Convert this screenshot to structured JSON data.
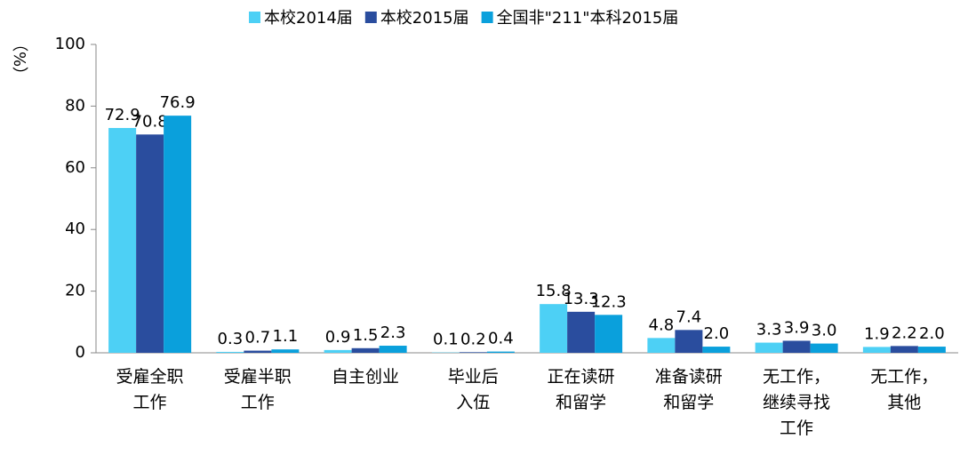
{
  "chart_data": {
    "type": "bar",
    "y_label": "（%）",
    "categories": [
      "受雇全职\n工作",
      "受雇半职\n工作",
      "自主创业",
      "毕业后\n入伍",
      "正在读研\n和留学",
      "准备读研\n和留学",
      "无工作，\n继续寻找\n工作",
      "无工作，\n其他"
    ],
    "series": [
      {
        "name": "本校2014届",
        "color": "#4dd0f5",
        "values": [
          72.9,
          0.3,
          0.9,
          0.1,
          15.8,
          4.8,
          3.3,
          1.9
        ],
        "value_labels": [
          "72.9",
          "0.3",
          "0.9",
          "0.1",
          "15.8",
          "4.8",
          "3.3",
          "1.9"
        ]
      },
      {
        "name": "本校2015届",
        "color": "#2a4d9e",
        "values": [
          70.8,
          0.7,
          1.5,
          0.2,
          13.3,
          7.4,
          3.9,
          2.2
        ],
        "value_labels": [
          "70.8",
          "0.7",
          "1.5",
          "0.2",
          "13.3",
          "7.4",
          "3.9",
          "2.2"
        ]
      },
      {
        "name": "全国非\"211\"本科2015届",
        "color": "#0aa0dc",
        "values": [
          76.9,
          1.1,
          2.3,
          0.4,
          12.3,
          2,
          3,
          2
        ],
        "value_labels": [
          "76.9",
          "1.1",
          "2.3",
          "0.4",
          "12.3",
          "2.0",
          "3.0",
          "2.0"
        ]
      }
    ],
    "ylim": [
      0,
      100
    ],
    "yticks": [
      0,
      20,
      40,
      60,
      80,
      100
    ],
    "grid": false,
    "legend": "top"
  }
}
